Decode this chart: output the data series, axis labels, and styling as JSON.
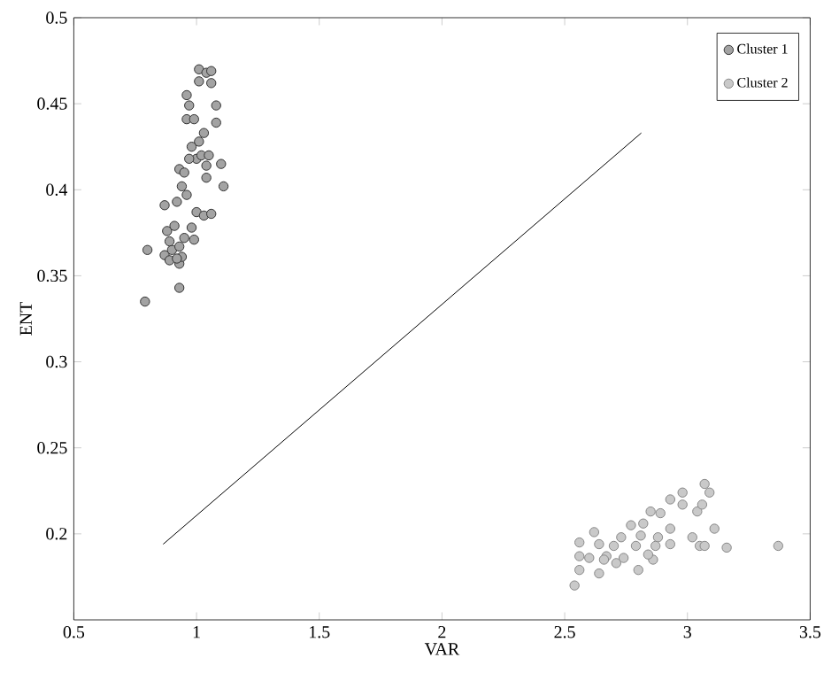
{
  "chart_data": {
    "type": "scatter",
    "xlabel": "VAR",
    "ylabel": "ENT",
    "xlim": [
      0.5,
      3.5
    ],
    "xticks": [
      0.5,
      1,
      1.5,
      2,
      2.5,
      3,
      3.5
    ],
    "ylim": [
      0.15,
      0.5
    ],
    "yticks": [
      0.2,
      0.25,
      0.3,
      0.35,
      0.4,
      0.45,
      0.5
    ],
    "legend": "top right",
    "grid": false,
    "marker": "circle",
    "series": [
      {
        "name": "Cluster 1",
        "color": "#333333",
        "x": [
          0.79,
          0.8,
          0.87,
          0.87,
          0.88,
          0.89,
          0.9,
          0.91,
          0.92,
          0.93,
          0.93,
          0.93,
          0.94,
          0.93,
          0.95,
          0.96,
          0.96,
          0.97,
          0.96,
          0.97,
          0.98,
          0.99,
          0.98,
          0.99,
          1.0,
          1.0,
          1.01,
          1.01,
          1.04,
          1.06,
          1.06,
          1.08,
          1.08,
          1.03,
          1.02,
          1.04,
          1.04,
          1.05,
          1.03,
          1.05,
          1.06,
          1.1,
          1.11,
          0.95,
          0.97,
          1.01,
          0.94,
          0.92,
          0.89
        ],
        "values": [
          0.335,
          0.365,
          0.391,
          0.362,
          0.376,
          0.359,
          0.365,
          0.379,
          0.393,
          0.343,
          0.357,
          0.367,
          0.361,
          0.412,
          0.372,
          0.397,
          0.455,
          0.449,
          0.441,
          null,
          0.425,
          0.441,
          0.378,
          0.371,
          0.387,
          0.418,
          0.463,
          0.47,
          0.468,
          0.469,
          0.462,
          0.449,
          0.439,
          0.433,
          0.42,
          0.414,
          0.407,
          0.42,
          0.385,
          null,
          0.386,
          0.415,
          0.402,
          0.41,
          0.418,
          0.428,
          0.402,
          0.36,
          0.37
        ]
      },
      {
        "name": "Cluster 2",
        "color": "#888888",
        "x": [
          2.54,
          2.56,
          2.56,
          2.56,
          2.62,
          2.6,
          2.64,
          2.64,
          2.67,
          2.7,
          2.71,
          2.73,
          2.74,
          2.77,
          2.8,
          2.81,
          2.82,
          2.85,
          2.86,
          2.89,
          2.88,
          2.93,
          2.93,
          2.93,
          2.98,
          2.98,
          3.02,
          3.04,
          3.05,
          3.06,
          3.07,
          3.09,
          3.07,
          3.11,
          3.16,
          3.37,
          2.84,
          2.79,
          2.66,
          2.87
        ],
        "values": [
          0.17,
          0.195,
          0.187,
          0.179,
          0.201,
          0.186,
          0.194,
          0.177,
          0.187,
          0.193,
          0.183,
          0.198,
          0.186,
          0.205,
          0.179,
          0.199,
          0.206,
          0.213,
          0.185,
          0.212,
          0.198,
          0.203,
          0.194,
          0.22,
          0.224,
          0.217,
          0.198,
          0.213,
          0.193,
          0.217,
          0.229,
          0.224,
          0.193,
          0.203,
          0.192,
          0.193,
          0.188,
          0.193,
          0.185,
          0.193
        ]
      },
      {
        "type": "line",
        "color": "#000000",
        "marker": "none",
        "x": [
          0.864,
          2.812
        ],
        "values": [
          0.194,
          0.433
        ]
      }
    ]
  }
}
